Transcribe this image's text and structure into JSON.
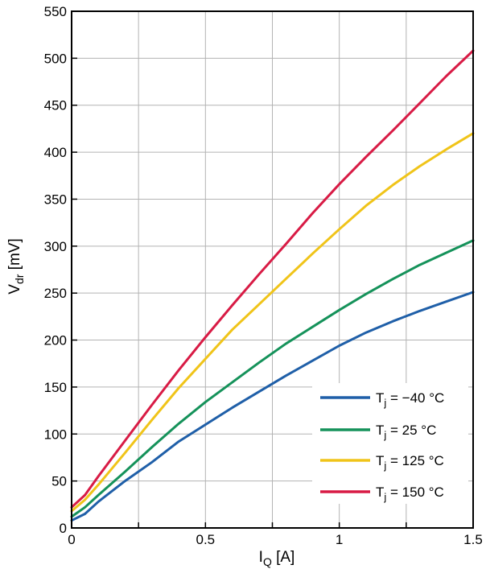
{
  "chart_data": {
    "type": "line",
    "title": "",
    "xlabel": {
      "main": "I",
      "sub": "Q",
      "unit": " [A]"
    },
    "ylabel": {
      "main": "V",
      "sub": "dr",
      "unit": " [mV]"
    },
    "xlim": [
      0,
      1.5
    ],
    "ylim": [
      0,
      550
    ],
    "x_ticks": [
      0,
      0.25,
      0.5,
      0.75,
      1,
      1.25,
      1.5
    ],
    "x_tick_labels": [
      "0",
      "",
      "0.5",
      "",
      "1",
      "",
      "1.5"
    ],
    "y_ticks": [
      0,
      50,
      100,
      150,
      200,
      250,
      300,
      350,
      400,
      450,
      500,
      550
    ],
    "grid": true,
    "legend_position": "bottom-right",
    "series": [
      {
        "name": "T_j = −40 °C",
        "label_main": "T",
        "label_sub": "j",
        "label_rest": " = −40 °C",
        "color": "#1f5fa8",
        "x": [
          0,
          0.05,
          0.1,
          0.2,
          0.3,
          0.4,
          0.5,
          0.6,
          0.7,
          0.8,
          0.9,
          1.0,
          1.1,
          1.2,
          1.3,
          1.4,
          1.5
        ],
        "y": [
          8,
          15,
          28,
          50,
          70,
          92,
          110,
          128,
          145,
          162,
          178,
          194,
          208,
          220,
          231,
          241,
          251
        ]
      },
      {
        "name": "T_j = 25 °C",
        "label_main": "T",
        "label_sub": "j",
        "label_rest": " = 25 °C",
        "color": "#15925a",
        "x": [
          0,
          0.05,
          0.1,
          0.2,
          0.3,
          0.4,
          0.5,
          0.6,
          0.7,
          0.8,
          0.9,
          1.0,
          1.1,
          1.2,
          1.3,
          1.4,
          1.5
        ],
        "y": [
          12,
          22,
          35,
          60,
          86,
          111,
          134,
          155,
          176,
          196,
          214,
          232,
          249,
          265,
          280,
          293,
          306
        ]
      },
      {
        "name": "T_j = 125 °C",
        "label_main": "T",
        "label_sub": "j",
        "label_rest": " = 125 °C",
        "color": "#f0c419",
        "x": [
          0,
          0.05,
          0.1,
          0.2,
          0.3,
          0.4,
          0.5,
          0.6,
          0.7,
          0.8,
          0.9,
          1.0,
          1.1,
          1.2,
          1.3,
          1.4,
          1.5
        ],
        "y": [
          18,
          30,
          46,
          80,
          115,
          149,
          180,
          211,
          238,
          265,
          292,
          318,
          343,
          365,
          385,
          403,
          420
        ]
      },
      {
        "name": "T_j = 150 °C",
        "label_main": "T",
        "label_sub": "j",
        "label_rest": " = 150 °C",
        "color": "#d81b45",
        "x": [
          0,
          0.05,
          0.1,
          0.2,
          0.3,
          0.4,
          0.5,
          0.6,
          0.7,
          0.8,
          0.9,
          1.0,
          1.1,
          1.2,
          1.3,
          1.4,
          1.5
        ],
        "y": [
          22,
          35,
          55,
          93,
          131,
          168,
          203,
          237,
          270,
          302,
          335,
          366,
          395,
          423,
          452,
          481,
          508
        ]
      }
    ]
  }
}
